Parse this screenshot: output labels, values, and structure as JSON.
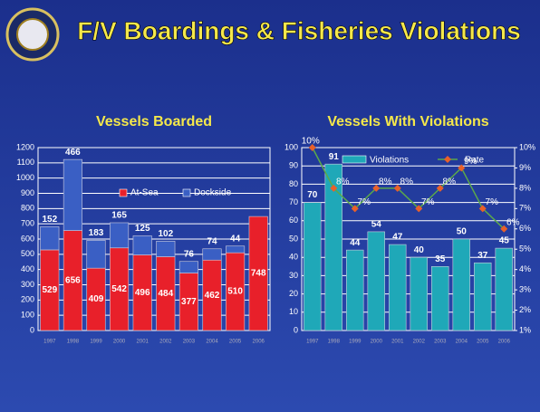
{
  "title": "F/V Boardings & Fisheries Violations",
  "chart_data": [
    {
      "type": "bar",
      "stacked": true,
      "title": "Vessels Boarded",
      "categories": [
        "1997",
        "1998",
        "1999",
        "2000",
        "2001",
        "2002",
        "2003",
        "2004",
        "2005",
        "2006"
      ],
      "series": [
        {
          "name": "At-Sea",
          "color": "#e8202a",
          "values": [
            529,
            656,
            409,
            542,
            496,
            484,
            377,
            462,
            510,
            748
          ]
        },
        {
          "name": "Dockside",
          "color": "#3a5fc4",
          "values": [
            152,
            466,
            183,
            165,
            125,
            102,
            76,
            74,
            44,
            null
          ]
        }
      ],
      "ylim": [
        0,
        1200
      ],
      "yticks": [
        0,
        100,
        200,
        300,
        400,
        500,
        600,
        700,
        800,
        900,
        1000,
        1100,
        1200
      ],
      "grid": true,
      "legend": "center"
    },
    {
      "type": "bar-line",
      "title": "Vessels With Violations",
      "categories": [
        "1997",
        "1998",
        "1999",
        "2000",
        "2001",
        "2002",
        "2003",
        "2004",
        "2005",
        "2006"
      ],
      "series": [
        {
          "name": "Violations",
          "color": "#1fa8b8",
          "values": [
            70,
            91,
            44,
            54,
            47,
            40,
            35,
            50,
            37,
            45
          ]
        },
        {
          "name": "Rate",
          "color": "#5ba84a",
          "marker_color": "#e8602a",
          "axis": "y2",
          "values": [
            10,
            8,
            7,
            8,
            8,
            7,
            8,
            9,
            7,
            6
          ],
          "value_labels": [
            "10%",
            "8%",
            "7%",
            "8%",
            "8%",
            "7%",
            "8%",
            "9%",
            "7%",
            "6%"
          ]
        }
      ],
      "ylim": [
        0,
        100
      ],
      "yticks": [
        0,
        10,
        20,
        30,
        40,
        50,
        60,
        70,
        80,
        90,
        100
      ],
      "y2lim": [
        1,
        10
      ],
      "y2ticks": [
        {
          "value": 1,
          "label": "1%"
        },
        {
          "value": 2,
          "label": "2%"
        },
        {
          "value": 3,
          "label": "3%"
        },
        {
          "value": 4,
          "label": "4%"
        },
        {
          "value": 5,
          "label": "5%"
        },
        {
          "value": 6,
          "label": "6%"
        },
        {
          "value": 7,
          "label": "7%"
        },
        {
          "value": 8,
          "label": "8%"
        },
        {
          "value": 9,
          "label": "9%"
        },
        {
          "value": 10,
          "label": "10%"
        }
      ],
      "grid": true,
      "legend": "top"
    }
  ]
}
